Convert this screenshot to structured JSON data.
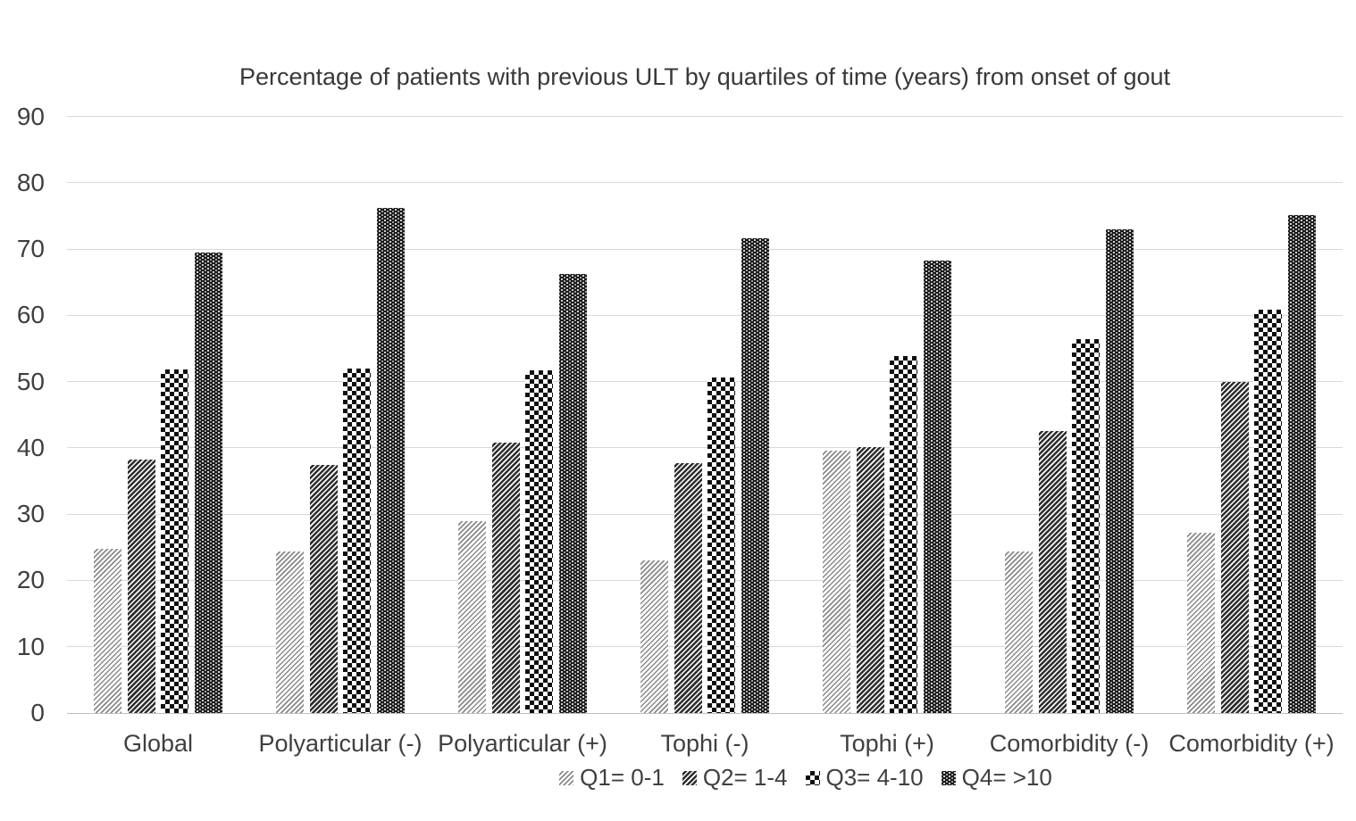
{
  "chart_data": {
    "type": "bar",
    "title": "Percentage of patients with previous ULT by quartiles of time (years) from onset of gout",
    "categories": [
      "Global",
      "Polyarticular (-)",
      "Polyarticular (+)",
      "Tophi (-)",
      "Tophi (+)",
      "Comorbidity (-)",
      "Comorbidity (+)"
    ],
    "series": [
      {
        "name": "Q1= 0-1",
        "pattern": "diagonal-light-hatch",
        "values": [
          24.8,
          24.4,
          29.0,
          23.0,
          39.6,
          24.4,
          27.2
        ]
      },
      {
        "name": "Q2= 1-4",
        "pattern": "diagonal-dark-hatch",
        "values": [
          38.2,
          37.4,
          40.8,
          37.7,
          40.1,
          42.5,
          50.0
        ]
      },
      {
        "name": "Q3= 4-10",
        "pattern": "checkerboard",
        "values": [
          51.8,
          52.0,
          51.7,
          50.6,
          53.8,
          56.4,
          60.8
        ]
      },
      {
        "name": "Q4= >10",
        "pattern": "dark-checkerboard",
        "values": [
          69.5,
          76.2,
          66.2,
          71.7,
          68.3,
          73.0,
          75.1
        ]
      }
    ],
    "ylabel": "",
    "xlabel": "",
    "ylim": [
      0,
      90
    ],
    "ytick_step": 10,
    "yticks": [
      0,
      10,
      20,
      30,
      40,
      50,
      60,
      70,
      80,
      90
    ],
    "grid": "horizontal",
    "legend_position": "bottom"
  },
  "colors": {
    "background": "#ffffff",
    "gridline": "#d9d9d9",
    "axis_line": "#bfbfbf",
    "text": "#3f3f3f",
    "bar_ink": "#1b1b1b"
  }
}
